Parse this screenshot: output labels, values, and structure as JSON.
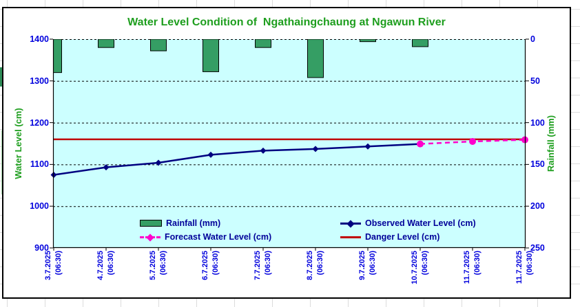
{
  "sheet": {
    "gridline_color": "#dcdcdc"
  },
  "text_colors": {
    "title": "#1e9e1e",
    "axis_titles": "#1e9e1e",
    "tick_labels": "#0000dd",
    "legend_text": "#000099"
  },
  "chart_data": {
    "type": "combo",
    "title": "Water Level Condition of  Ngathaingchaung at Ngawun River",
    "categories": [
      "3.7.2025 (06:30)",
      "4.7.2025 (06:30)",
      "5.7.2025 (06:30)",
      "6.7.2025 (06:30)",
      "7.7.2025 (06:30)",
      "8.7.2025 (06:30)",
      "9.7.2025 (06:30)",
      "10.7.2025 (06:30)",
      "11.7.2025 (06:30)",
      "11.7.2025 (06:30)"
    ],
    "series": [
      {
        "name": "Rainfall (mm)",
        "type": "bar",
        "axis": "right",
        "color": "#359e64",
        "values": [
          40,
          10,
          14,
          39,
          10,
          46,
          3,
          9,
          null,
          null
        ]
      },
      {
        "name": "Observed Water Level (cm)",
        "type": "line",
        "axis": "left",
        "color": "#000080",
        "marker": "diamond",
        "values": [
          1075,
          1093,
          1104,
          1123,
          1133,
          1137,
          1143,
          1149,
          null,
          null
        ]
      },
      {
        "name": "Forecast Water Level (cm)",
        "type": "line",
        "style": "dashed",
        "axis": "left",
        "color": "#ff00cc",
        "marker": "circle",
        "values": [
          null,
          null,
          null,
          null,
          null,
          null,
          null,
          1149,
          1155,
          1159
        ]
      },
      {
        "name": "Danger Level (cm)",
        "type": "constant-line",
        "axis": "left",
        "color": "#c00000",
        "value": 1160
      }
    ],
    "left_axis": {
      "label": "Water Level (cm)",
      "min": 900,
      "max": 1400,
      "step": 100
    },
    "right_axis": {
      "label": "Rainfall (mm)",
      "min": 0,
      "max": 250,
      "step": 50,
      "inverted": true
    },
    "legend": {
      "position": "inside-bottom",
      "columns": [
        [
          "Rainfall (mm)",
          "Forecast Water Level (cm)"
        ],
        [
          "Observed Water Level (cm)",
          "Danger Level (cm)"
        ]
      ]
    },
    "plot_bg": "#ccffff",
    "grid": "horizontal-dashed-black"
  }
}
